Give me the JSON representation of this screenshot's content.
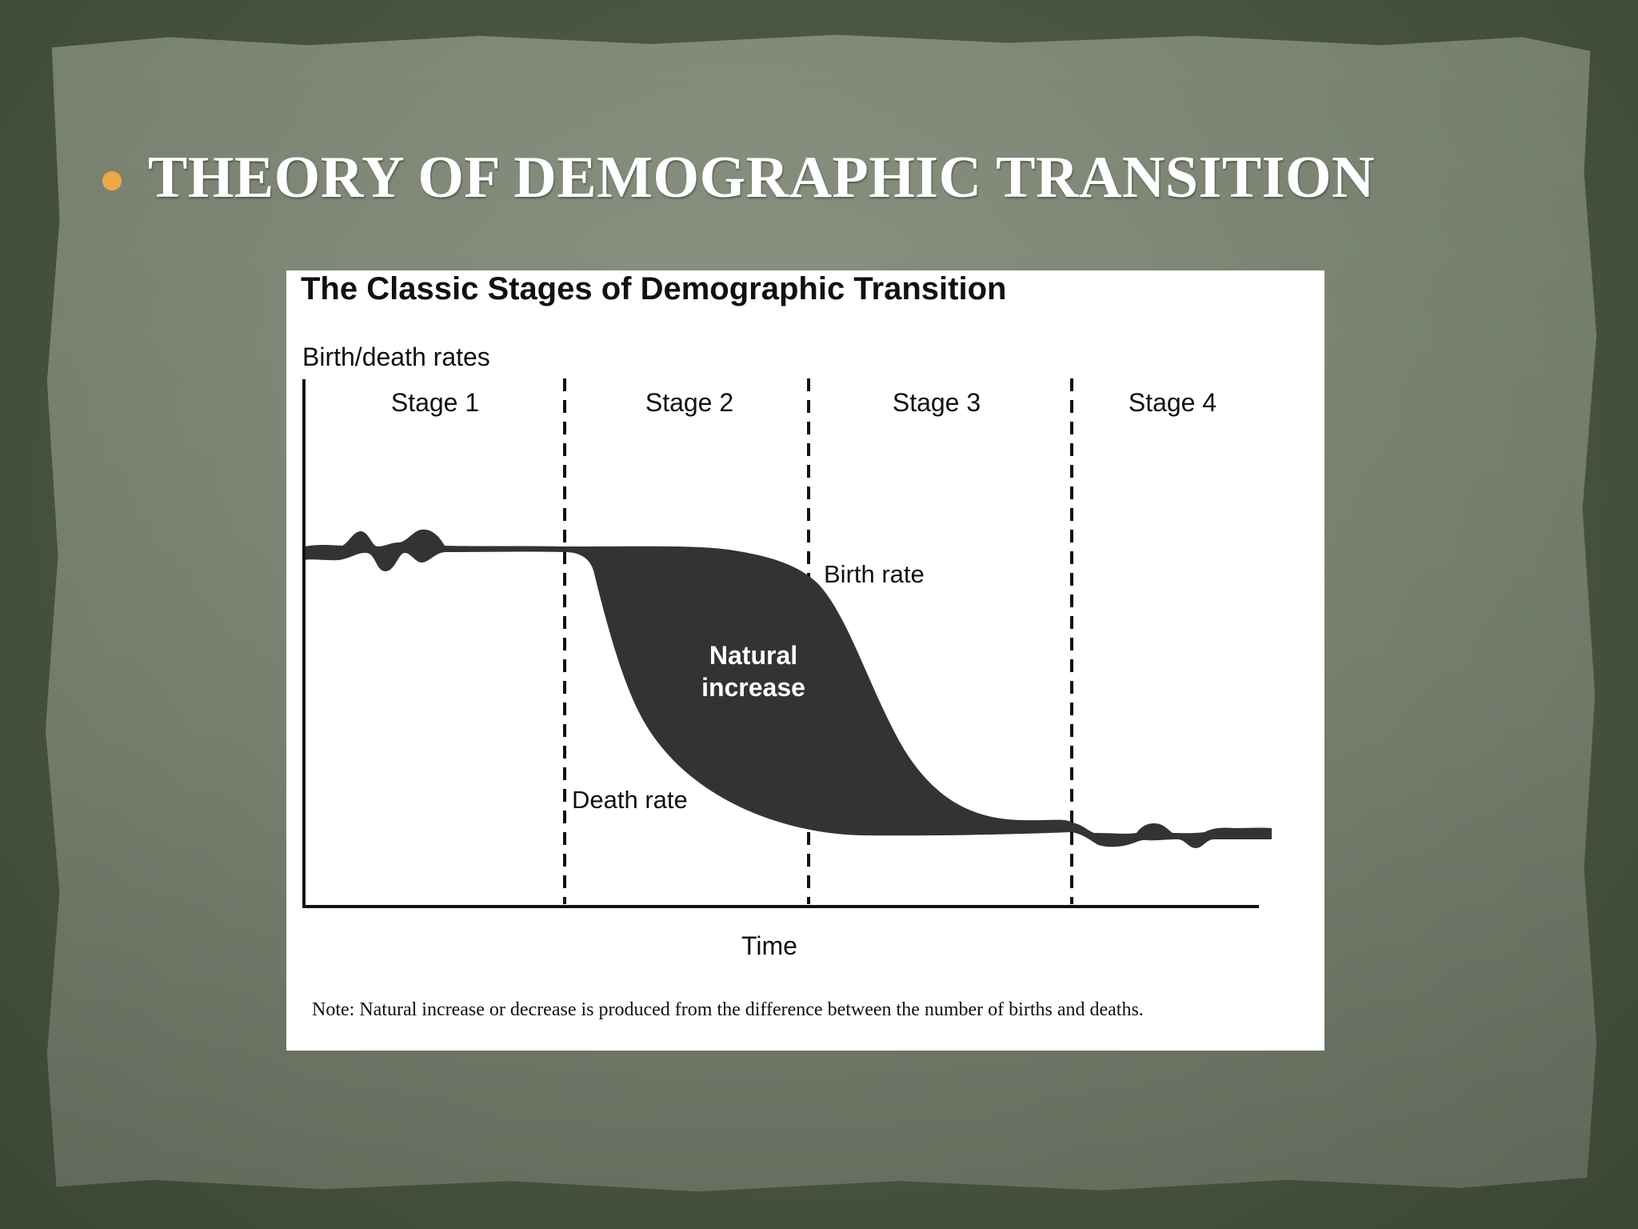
{
  "slide": {
    "heading": "THEORY OF DEMOGRAPHIC TRANSITION",
    "bullet_color": "#f0a848",
    "background_color": "#4f5b47",
    "paper_color": "#858d7b"
  },
  "figure": {
    "title": "The Classic Stages of Demographic Transition",
    "y_axis_label": "Birth/death rates",
    "x_axis_label": "Time",
    "stages": [
      "Stage 1",
      "Stage 2",
      "Stage 3",
      "Stage 4"
    ],
    "labels": {
      "birth_rate": "Birth rate",
      "death_rate": "Death rate",
      "natural_increase_line1": "Natural",
      "natural_increase_line2": "increase"
    },
    "note": "Note: Natural increase or decrease is produced from the difference between the number of births and deaths.",
    "fill_color": "#333333"
  }
}
